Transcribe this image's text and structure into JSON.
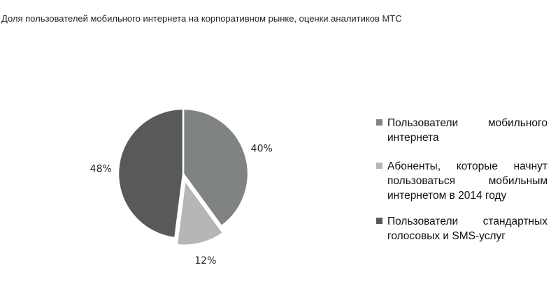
{
  "chart_data": {
    "type": "pie",
    "title": "Доля пользователей мобильного интернета на корпоративном рынке, оценки аналитиков МТС",
    "slices": [
      {
        "label": "Пользователи мобильного интернета",
        "value": 40,
        "value_label": "40%",
        "color": "#7f8480",
        "exploded": false
      },
      {
        "label": "Абоненты, которые начнут пользоваться мобильным интернетом в 2014 году",
        "value": 12,
        "value_label": "12%",
        "color": "#b6b6b6",
        "exploded": true
      },
      {
        "label": "Пользователи стандартных голосовых и SMS-услуг",
        "value": 48,
        "value_label": "48%",
        "color": "#575a58",
        "exploded": false
      }
    ],
    "legend_position": "right",
    "start_angle": "top",
    "direction": "clockwise"
  }
}
